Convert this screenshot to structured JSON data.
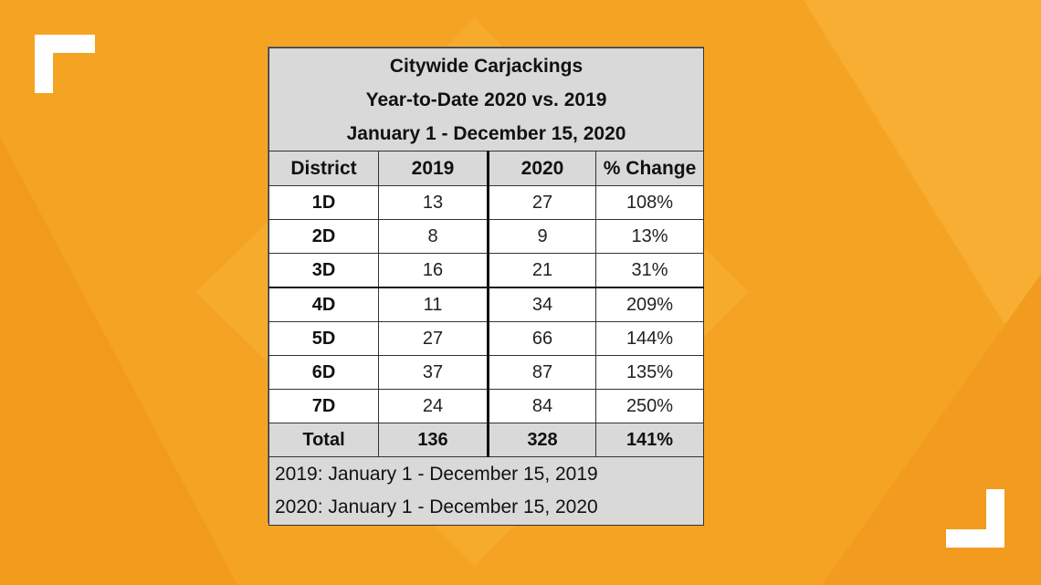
{
  "title_lines": [
    "Citywide Carjackings",
    "Year-to-Date 2020 vs. 2019",
    "January 1 - December 15, 2020"
  ],
  "headers": [
    "District",
    "2019",
    "2020",
    "% Change"
  ],
  "rows": [
    [
      "1D",
      "13",
      "27",
      "108%"
    ],
    [
      "2D",
      "8",
      "9",
      "13%"
    ],
    [
      "3D",
      "16",
      "21",
      "31%"
    ],
    [
      "4D",
      "11",
      "34",
      "209%"
    ],
    [
      "5D",
      "27",
      "66",
      "144%"
    ],
    [
      "6D",
      "37",
      "87",
      "135%"
    ],
    [
      "7D",
      "24",
      "84",
      "250%"
    ]
  ],
  "total": [
    "Total",
    "136",
    "328",
    "141%"
  ],
  "footnotes": [
    "2019: January 1 - December 15, 2019",
    "2020: January 1 - December 15, 2020"
  ],
  "colors": {
    "background": "#f5a323",
    "table_header": "#d9d9d9",
    "corner_marks": "#ffffff"
  }
}
